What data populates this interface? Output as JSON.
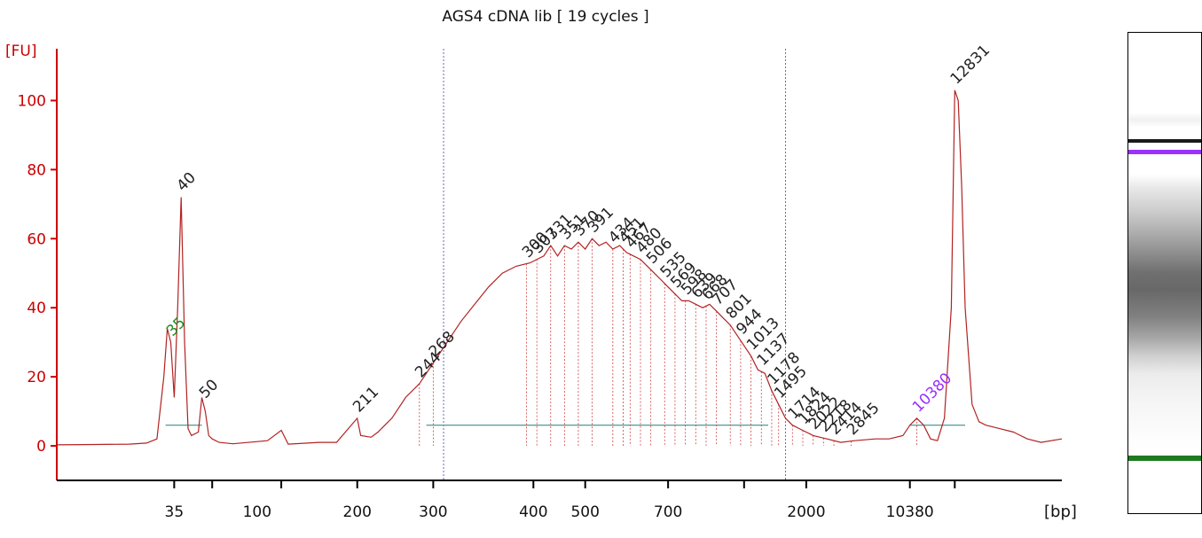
{
  "chart_data": {
    "type": "line",
    "title": "AGS4 cDNA lib  [ 19 cycles ]",
    "ylabel": "[FU]",
    "xlabel": "[bp]",
    "ylim": [
      -10,
      115
    ],
    "y_ticks": [
      "0",
      "20",
      "40",
      "60",
      "80",
      "100"
    ],
    "x_ticks": [
      "35",
      "100",
      "200",
      "300",
      "400",
      "500",
      "700",
      "2000",
      "10380"
    ],
    "peak_labels": [
      {
        "text": "35",
        "color": "#228b22"
      },
      {
        "text": "40",
        "color": "#222222"
      },
      {
        "text": "50",
        "color": "#222222"
      },
      {
        "text": "211",
        "color": "#222222"
      },
      {
        "text": "244",
        "color": "#222222"
      },
      {
        "text": "268",
        "color": "#222222"
      },
      {
        "text": "300",
        "color": "#222222"
      },
      {
        "text": "307",
        "color": "#222222"
      },
      {
        "text": "331",
        "color": "#222222"
      },
      {
        "text": "351",
        "color": "#222222"
      },
      {
        "text": "370",
        "color": "#222222"
      },
      {
        "text": "391",
        "color": "#222222"
      },
      {
        "text": "434",
        "color": "#222222"
      },
      {
        "text": "451",
        "color": "#222222"
      },
      {
        "text": "467",
        "color": "#222222"
      },
      {
        "text": "480",
        "color": "#222222"
      },
      {
        "text": "506",
        "color": "#222222"
      },
      {
        "text": "535",
        "color": "#222222"
      },
      {
        "text": "569",
        "color": "#222222"
      },
      {
        "text": "598",
        "color": "#222222"
      },
      {
        "text": "639",
        "color": "#222222"
      },
      {
        "text": "668",
        "color": "#222222"
      },
      {
        "text": "707",
        "color": "#222222"
      },
      {
        "text": "801",
        "color": "#222222"
      },
      {
        "text": "944",
        "color": "#222222"
      },
      {
        "text": "1013",
        "color": "#222222"
      },
      {
        "text": "1137",
        "color": "#222222"
      },
      {
        "text": "1178",
        "color": "#222222"
      },
      {
        "text": "1495",
        "color": "#222222"
      },
      {
        "text": "1714",
        "color": "#222222"
      },
      {
        "text": "1824",
        "color": "#222222"
      },
      {
        "text": "2022",
        "color": "#222222"
      },
      {
        "text": "2218",
        "color": "#222222"
      },
      {
        "text": "2414",
        "color": "#222222"
      },
      {
        "text": "2845",
        "color": "#222222"
      },
      {
        "text": "10380",
        "color": "#9b30ff"
      },
      {
        "text": "12831",
        "color": "#222222"
      }
    ],
    "series": [
      {
        "points": [
          [
            -1,
            0.3
          ],
          [
            10,
            0.4
          ],
          [
            20,
            0.5
          ],
          [
            25,
            0.8
          ],
          [
            28,
            2
          ],
          [
            30,
            20
          ],
          [
            31,
            34
          ],
          [
            32,
            30
          ],
          [
            33,
            14
          ],
          [
            34,
            40
          ],
          [
            35,
            72
          ],
          [
            36,
            30
          ],
          [
            37,
            5
          ],
          [
            38,
            3
          ],
          [
            40,
            4
          ],
          [
            41,
            14
          ],
          [
            42,
            10
          ],
          [
            43,
            3
          ],
          [
            44,
            2
          ],
          [
            46,
            1
          ],
          [
            50,
            0.6
          ],
          [
            60,
            1.5
          ],
          [
            64,
            4.5
          ],
          [
            66,
            0.5
          ],
          [
            75,
            1
          ],
          [
            80,
            1
          ],
          [
            86,
            8
          ],
          [
            87,
            3
          ],
          [
            90,
            2.5
          ],
          [
            92,
            4
          ],
          [
            94,
            6
          ],
          [
            96,
            8
          ],
          [
            98,
            11
          ],
          [
            100,
            14
          ],
          [
            104,
            18
          ],
          [
            108,
            24
          ],
          [
            112,
            30
          ],
          [
            116,
            36
          ],
          [
            120,
            41
          ],
          [
            124,
            46
          ],
          [
            128,
            50
          ],
          [
            132,
            52
          ],
          [
            136,
            53
          ],
          [
            140,
            55
          ],
          [
            142,
            58
          ],
          [
            144,
            55
          ],
          [
            146,
            58
          ],
          [
            148,
            57
          ],
          [
            150,
            59
          ],
          [
            152,
            57
          ],
          [
            154,
            60
          ],
          [
            156,
            58
          ],
          [
            158,
            59
          ],
          [
            160,
            57
          ],
          [
            162,
            58
          ],
          [
            164,
            56
          ],
          [
            166,
            55
          ],
          [
            168,
            54
          ],
          [
            170,
            52
          ],
          [
            172,
            50
          ],
          [
            174,
            48
          ],
          [
            176,
            46
          ],
          [
            178,
            44
          ],
          [
            180,
            42
          ],
          [
            182,
            42
          ],
          [
            184,
            41
          ],
          [
            186,
            40
          ],
          [
            188,
            41
          ],
          [
            190,
            39
          ],
          [
            192,
            37
          ],
          [
            194,
            35
          ],
          [
            196,
            32
          ],
          [
            198,
            29
          ],
          [
            200,
            26
          ],
          [
            202,
            22
          ],
          [
            204,
            21
          ],
          [
            206,
            16
          ],
          [
            208,
            12
          ],
          [
            210,
            8
          ],
          [
            212,
            6
          ],
          [
            214,
            5
          ],
          [
            218,
            3
          ],
          [
            222,
            2
          ],
          [
            226,
            1
          ],
          [
            230,
            1.5
          ],
          [
            236,
            2
          ],
          [
            240,
            2
          ],
          [
            244,
            3
          ],
          [
            246,
            6
          ],
          [
            248,
            8
          ],
          [
            250,
            6
          ],
          [
            252,
            2
          ],
          [
            254,
            1.5
          ],
          [
            256,
            8
          ],
          [
            258,
            40
          ],
          [
            259,
            103
          ],
          [
            260,
            100
          ],
          [
            261,
            75
          ],
          [
            262,
            40
          ],
          [
            264,
            12
          ],
          [
            266,
            7
          ],
          [
            268,
            6
          ],
          [
            272,
            5
          ],
          [
            276,
            4
          ],
          [
            280,
            2
          ],
          [
            284,
            1
          ],
          [
            290,
            2
          ]
        ]
      }
    ]
  }
}
